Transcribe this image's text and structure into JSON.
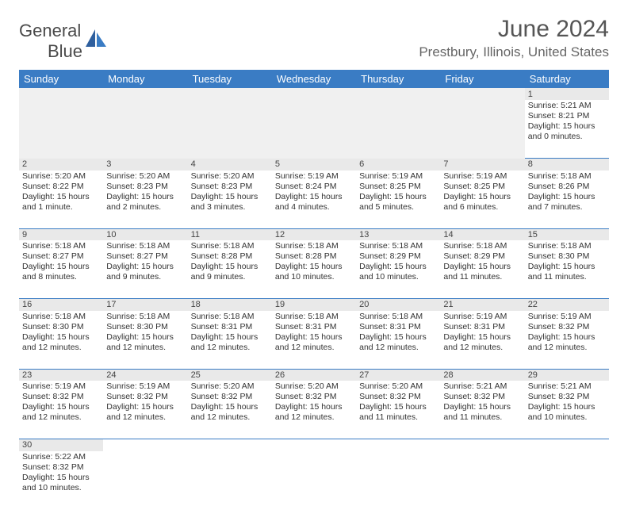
{
  "logo": {
    "line1": "General",
    "line2": "Blue"
  },
  "title": "June 2024",
  "location": "Prestbury, Illinois, United States",
  "colors": {
    "header_bg": "#3a7cc4",
    "header_text": "#ffffff",
    "daynum_bg": "#e9e9e9",
    "border": "#3a7cc4",
    "text": "#333333",
    "title": "#555555"
  },
  "weekdays": [
    "Sunday",
    "Monday",
    "Tuesday",
    "Wednesday",
    "Thursday",
    "Friday",
    "Saturday"
  ],
  "weeks": [
    [
      null,
      null,
      null,
      null,
      null,
      null,
      {
        "n": "1",
        "rise": "Sunrise: 5:21 AM",
        "set": "Sunset: 8:21 PM",
        "d1": "Daylight: 15 hours",
        "d2": "and 0 minutes."
      }
    ],
    [
      {
        "n": "2",
        "rise": "Sunrise: 5:20 AM",
        "set": "Sunset: 8:22 PM",
        "d1": "Daylight: 15 hours",
        "d2": "and 1 minute."
      },
      {
        "n": "3",
        "rise": "Sunrise: 5:20 AM",
        "set": "Sunset: 8:23 PM",
        "d1": "Daylight: 15 hours",
        "d2": "and 2 minutes."
      },
      {
        "n": "4",
        "rise": "Sunrise: 5:20 AM",
        "set": "Sunset: 8:23 PM",
        "d1": "Daylight: 15 hours",
        "d2": "and 3 minutes."
      },
      {
        "n": "5",
        "rise": "Sunrise: 5:19 AM",
        "set": "Sunset: 8:24 PM",
        "d1": "Daylight: 15 hours",
        "d2": "and 4 minutes."
      },
      {
        "n": "6",
        "rise": "Sunrise: 5:19 AM",
        "set": "Sunset: 8:25 PM",
        "d1": "Daylight: 15 hours",
        "d2": "and 5 minutes."
      },
      {
        "n": "7",
        "rise": "Sunrise: 5:19 AM",
        "set": "Sunset: 8:25 PM",
        "d1": "Daylight: 15 hours",
        "d2": "and 6 minutes."
      },
      {
        "n": "8",
        "rise": "Sunrise: 5:18 AM",
        "set": "Sunset: 8:26 PM",
        "d1": "Daylight: 15 hours",
        "d2": "and 7 minutes."
      }
    ],
    [
      {
        "n": "9",
        "rise": "Sunrise: 5:18 AM",
        "set": "Sunset: 8:27 PM",
        "d1": "Daylight: 15 hours",
        "d2": "and 8 minutes."
      },
      {
        "n": "10",
        "rise": "Sunrise: 5:18 AM",
        "set": "Sunset: 8:27 PM",
        "d1": "Daylight: 15 hours",
        "d2": "and 9 minutes."
      },
      {
        "n": "11",
        "rise": "Sunrise: 5:18 AM",
        "set": "Sunset: 8:28 PM",
        "d1": "Daylight: 15 hours",
        "d2": "and 9 minutes."
      },
      {
        "n": "12",
        "rise": "Sunrise: 5:18 AM",
        "set": "Sunset: 8:28 PM",
        "d1": "Daylight: 15 hours",
        "d2": "and 10 minutes."
      },
      {
        "n": "13",
        "rise": "Sunrise: 5:18 AM",
        "set": "Sunset: 8:29 PM",
        "d1": "Daylight: 15 hours",
        "d2": "and 10 minutes."
      },
      {
        "n": "14",
        "rise": "Sunrise: 5:18 AM",
        "set": "Sunset: 8:29 PM",
        "d1": "Daylight: 15 hours",
        "d2": "and 11 minutes."
      },
      {
        "n": "15",
        "rise": "Sunrise: 5:18 AM",
        "set": "Sunset: 8:30 PM",
        "d1": "Daylight: 15 hours",
        "d2": "and 11 minutes."
      }
    ],
    [
      {
        "n": "16",
        "rise": "Sunrise: 5:18 AM",
        "set": "Sunset: 8:30 PM",
        "d1": "Daylight: 15 hours",
        "d2": "and 12 minutes."
      },
      {
        "n": "17",
        "rise": "Sunrise: 5:18 AM",
        "set": "Sunset: 8:30 PM",
        "d1": "Daylight: 15 hours",
        "d2": "and 12 minutes."
      },
      {
        "n": "18",
        "rise": "Sunrise: 5:18 AM",
        "set": "Sunset: 8:31 PM",
        "d1": "Daylight: 15 hours",
        "d2": "and 12 minutes."
      },
      {
        "n": "19",
        "rise": "Sunrise: 5:18 AM",
        "set": "Sunset: 8:31 PM",
        "d1": "Daylight: 15 hours",
        "d2": "and 12 minutes."
      },
      {
        "n": "20",
        "rise": "Sunrise: 5:18 AM",
        "set": "Sunset: 8:31 PM",
        "d1": "Daylight: 15 hours",
        "d2": "and 12 minutes."
      },
      {
        "n": "21",
        "rise": "Sunrise: 5:19 AM",
        "set": "Sunset: 8:31 PM",
        "d1": "Daylight: 15 hours",
        "d2": "and 12 minutes."
      },
      {
        "n": "22",
        "rise": "Sunrise: 5:19 AM",
        "set": "Sunset: 8:32 PM",
        "d1": "Daylight: 15 hours",
        "d2": "and 12 minutes."
      }
    ],
    [
      {
        "n": "23",
        "rise": "Sunrise: 5:19 AM",
        "set": "Sunset: 8:32 PM",
        "d1": "Daylight: 15 hours",
        "d2": "and 12 minutes."
      },
      {
        "n": "24",
        "rise": "Sunrise: 5:19 AM",
        "set": "Sunset: 8:32 PM",
        "d1": "Daylight: 15 hours",
        "d2": "and 12 minutes."
      },
      {
        "n": "25",
        "rise": "Sunrise: 5:20 AM",
        "set": "Sunset: 8:32 PM",
        "d1": "Daylight: 15 hours",
        "d2": "and 12 minutes."
      },
      {
        "n": "26",
        "rise": "Sunrise: 5:20 AM",
        "set": "Sunset: 8:32 PM",
        "d1": "Daylight: 15 hours",
        "d2": "and 12 minutes."
      },
      {
        "n": "27",
        "rise": "Sunrise: 5:20 AM",
        "set": "Sunset: 8:32 PM",
        "d1": "Daylight: 15 hours",
        "d2": "and 11 minutes."
      },
      {
        "n": "28",
        "rise": "Sunrise: 5:21 AM",
        "set": "Sunset: 8:32 PM",
        "d1": "Daylight: 15 hours",
        "d2": "and 11 minutes."
      },
      {
        "n": "29",
        "rise": "Sunrise: 5:21 AM",
        "set": "Sunset: 8:32 PM",
        "d1": "Daylight: 15 hours",
        "d2": "and 10 minutes."
      }
    ],
    [
      {
        "n": "30",
        "rise": "Sunrise: 5:22 AM",
        "set": "Sunset: 8:32 PM",
        "d1": "Daylight: 15 hours",
        "d2": "and 10 minutes."
      },
      null,
      null,
      null,
      null,
      null,
      null
    ]
  ]
}
